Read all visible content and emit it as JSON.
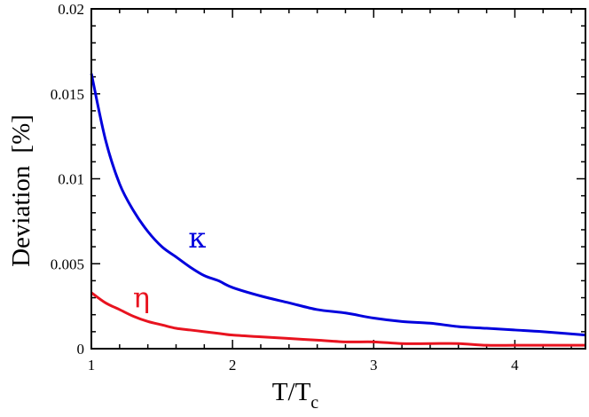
{
  "chart_data": {
    "type": "line",
    "title": "",
    "xlabel": "T/T",
    "xlabel_sub": "c",
    "ylabel": "Deviation",
    "ylabel_unit": "[%]",
    "xlim": [
      1,
      4.5
    ],
    "ylim": [
      0,
      0.02
    ],
    "x_ticks": [
      1,
      2,
      3,
      4
    ],
    "x_tick_labels": [
      "1",
      "2",
      "3",
      "4"
    ],
    "y_ticks": [
      0,
      0.005,
      0.01,
      0.015,
      0.02
    ],
    "y_tick_labels": [
      "0",
      "0.005",
      "0.01",
      "0.015",
      "0.02"
    ],
    "x_minor_step": 0.2,
    "y_minor_step": 0.001,
    "grid": false,
    "x": [
      1.0,
      1.1,
      1.2,
      1.3,
      1.4,
      1.5,
      1.6,
      1.7,
      1.8,
      1.9,
      2.0,
      2.2,
      2.4,
      2.6,
      2.8,
      3.0,
      3.2,
      3.4,
      3.6,
      3.8,
      4.0,
      4.2,
      4.5
    ],
    "series": [
      {
        "name": "κ",
        "color": "#0000dd",
        "values": [
          0.0162,
          0.0123,
          0.0097,
          0.0081,
          0.0069,
          0.006,
          0.0054,
          0.0048,
          0.0043,
          0.004,
          0.0036,
          0.0031,
          0.0027,
          0.0023,
          0.0021,
          0.0018,
          0.0016,
          0.0015,
          0.0013,
          0.0012,
          0.0011,
          0.001,
          0.0008
        ]
      },
      {
        "name": "η",
        "color": "#e8131f",
        "values": [
          0.0033,
          0.0027,
          0.0023,
          0.0019,
          0.0016,
          0.0014,
          0.0012,
          0.0011,
          0.001,
          0.0009,
          0.0008,
          0.0007,
          0.0006,
          0.0005,
          0.0004,
          0.0004,
          0.0003,
          0.0003,
          0.0003,
          0.0002,
          0.0002,
          0.0002,
          0.0002
        ]
      }
    ]
  }
}
